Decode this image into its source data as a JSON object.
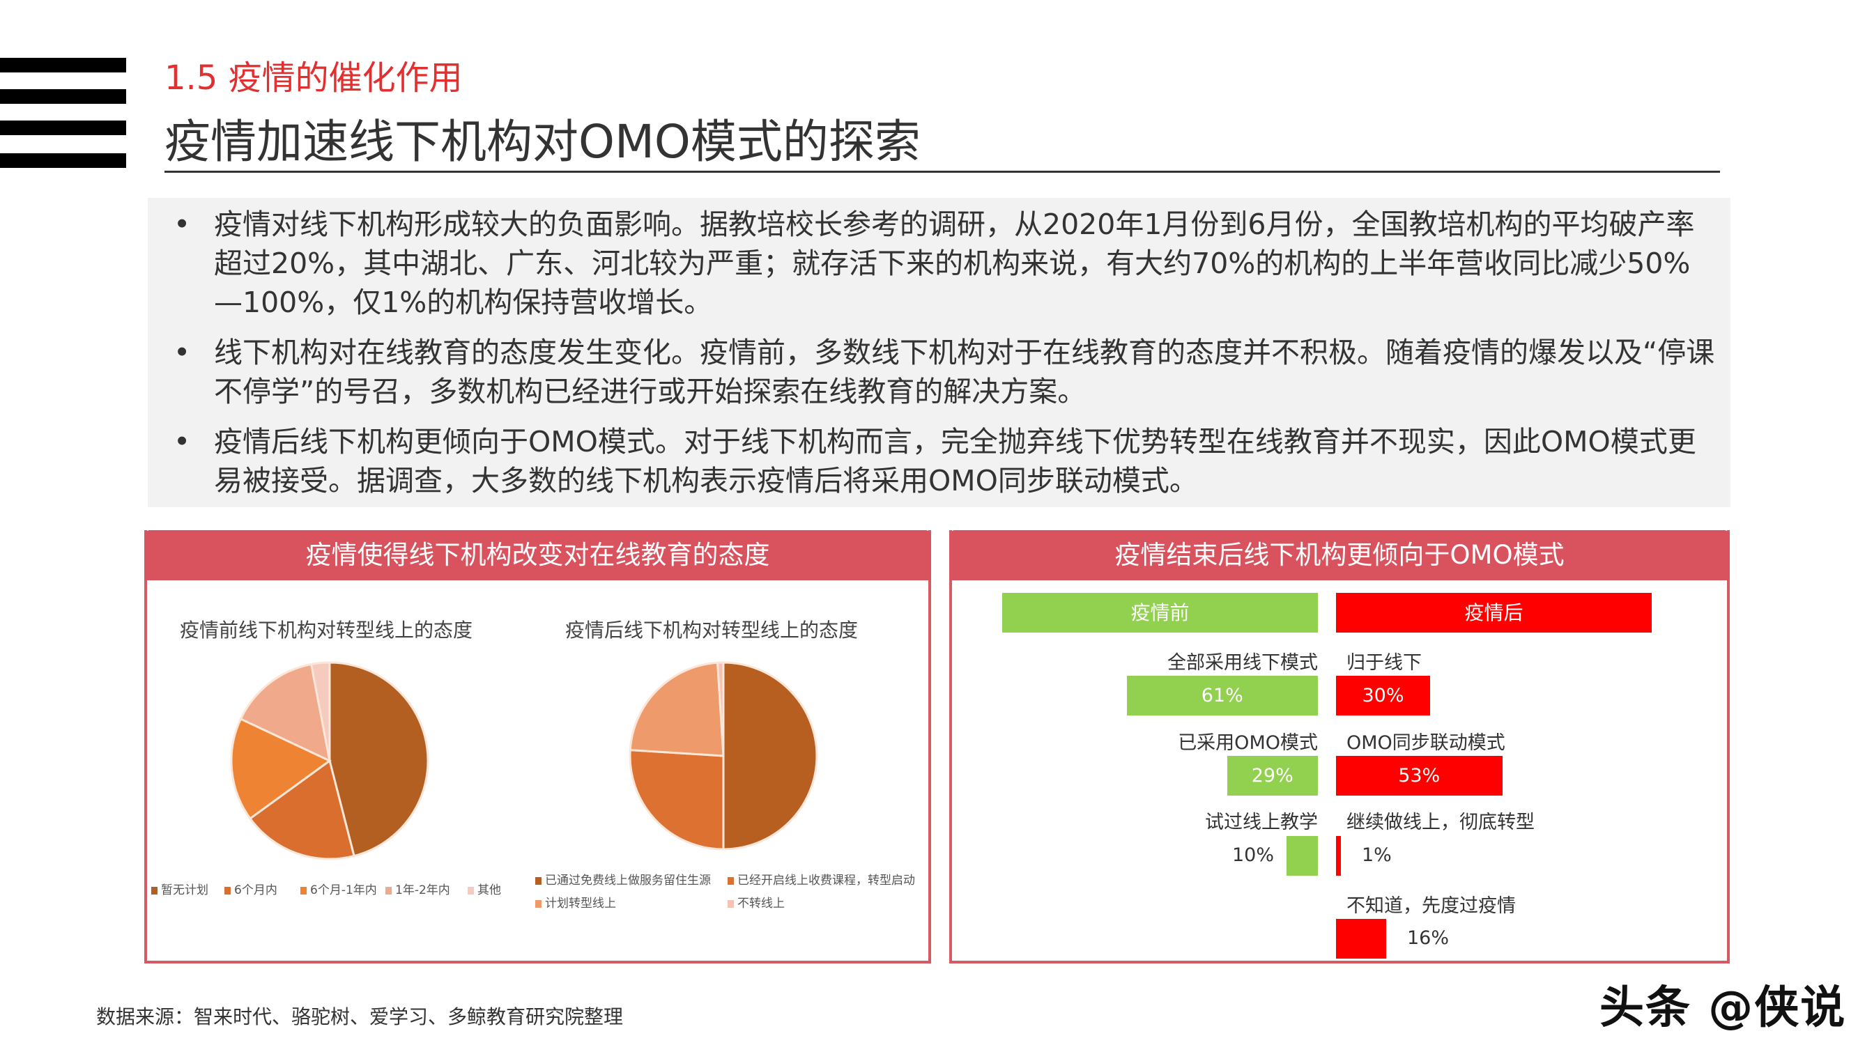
{
  "header": {
    "section": "1.5 疫情的催化作用",
    "title": "疫情加速线下机构对OMO模式的探索"
  },
  "bullets": [
    "疫情对线下机构形成较大的负面影响。据教培校长参考的调研，从2020年1月份到6月份，全国教培机构的平均破产率超过20%，其中湖北、广东、河北较为严重；就存活下来的机构来说，有大约70%的机构的上半年营收同比减少50%—100%，仅1%的机构保持营收增长。",
    "线下机构对在线教育的态度发生变化。疫情前，多数线下机构对于在线教育的态度并不积极。随着疫情的爆发以及“停课不停学”的号召，多数机构已经进行或开始探索在线教育的解决方案。",
    "疫情后线下机构更倾向于OMO模式。对于线下机构而言，完全抛弃线下优势转型在线教育并不现实，因此OMO模式更易被接受。据调查，大多数的线下机构表示疫情后将采用OMO同步联动模式。"
  ],
  "left_panel": {
    "title": "疫情使得线下机构改变对在线教育的态度"
  },
  "right_panel": {
    "title": "疫情结束后线下机构更倾向于OMO模式"
  },
  "chart_data": [
    {
      "type": "pie",
      "title": "疫情前线下机构对转型线上的态度",
      "categories": [
        "暂无计划",
        "6个月内",
        "6个月-1年内",
        "1年-2年内",
        "其他"
      ],
      "values": [
        46,
        19,
        17,
        15,
        3
      ],
      "colors": [
        "#b45f22",
        "#d96e2f",
        "#ee8433",
        "#f0a98a",
        "#f5cbbf"
      ],
      "legend": "bottom"
    },
    {
      "type": "pie",
      "title": "疫情后线下机构对转型线上的态度",
      "categories": [
        "已通过免费线上做服务留住生源",
        "已经开启线上收费课程，转型启动",
        "计划转型线上",
        "不转线上"
      ],
      "values": [
        50,
        26,
        23,
        1
      ],
      "colors": [
        "#b65f21",
        "#dc7132",
        "#ee9a6b",
        "#f3c4b5"
      ],
      "legend": "bottom"
    },
    {
      "type": "bar",
      "orientation": "horizontal-butterfly",
      "series": [
        {
          "name": "疫情前",
          "color": "#92d050",
          "categories": [
            "全部采用线下模式",
            "已采用OMO模式",
            "试过线上教学"
          ],
          "values": [
            61,
            29,
            10
          ]
        },
        {
          "name": "疫情后",
          "color": "#ff0000",
          "categories": [
            "归于线下",
            "OMO同步联动模式",
            "继续做线上，彻底转型",
            "不知道，先度过疫情"
          ],
          "values": [
            30,
            53,
            1,
            16
          ]
        }
      ]
    }
  ],
  "bar_labels": {
    "before": [
      "61%",
      "29%",
      "10%"
    ],
    "after": [
      "30%",
      "53%",
      "1%",
      "16%"
    ]
  },
  "footer": {
    "source": "数据来源：智来时代、骆驼树、爱学习、多鲸教育研究院整理",
    "watermark": "头条 @侠说"
  }
}
